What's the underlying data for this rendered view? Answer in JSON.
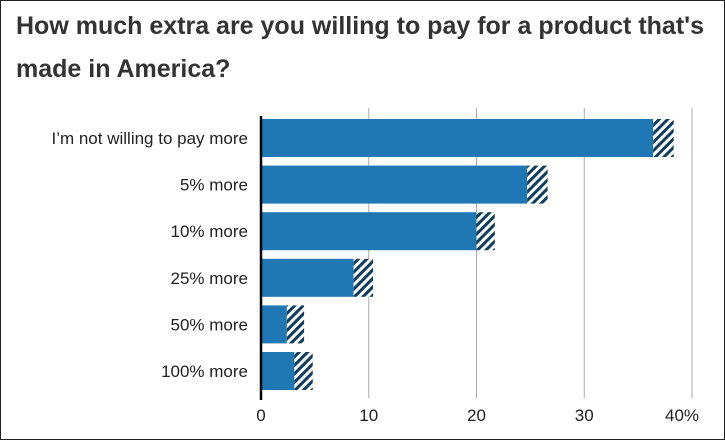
{
  "chart_data": {
    "type": "bar",
    "orientation": "horizontal",
    "title": "How much extra are you willing to pay for a product that's made in America?",
    "categories": [
      "I’m not willing to pay more",
      "5% more",
      "10% more",
      "25% more",
      "50% more",
      "100% more"
    ],
    "values": [
      38.3,
      26.6,
      21.7,
      10.4,
      4.0,
      4.8
    ],
    "hatched_uncertainty": [
      1.9,
      1.9,
      1.7,
      1.8,
      1.6,
      1.7
    ],
    "xlim": [
      0,
      40
    ],
    "xticks": [
      "0",
      "10",
      "20",
      "30",
      "40%"
    ],
    "grid": "vertical",
    "colors": {
      "bar": "#1f77b4",
      "hatch_dark": "#0f3d5e",
      "grid": "#aaaaaa",
      "axis": "#000000"
    }
  }
}
